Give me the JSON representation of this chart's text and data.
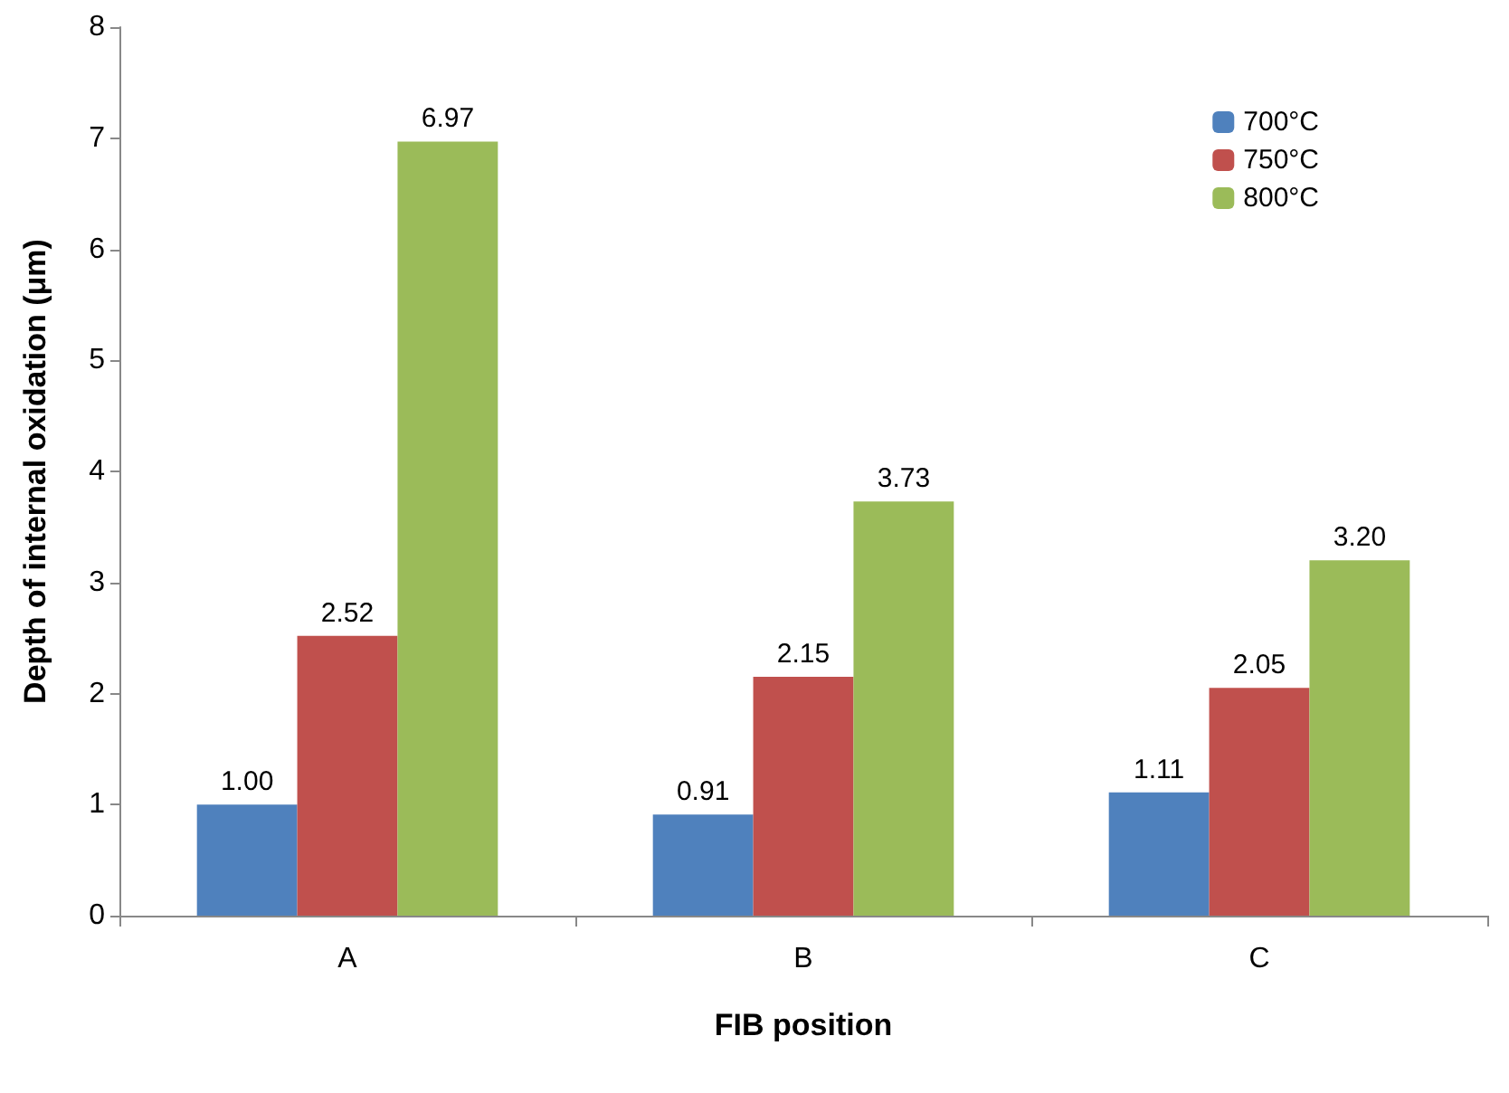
{
  "chart_data": {
    "type": "bar",
    "xlabel": "FIB position",
    "ylabel": "Depth of internal oxidation (μm)",
    "categories": [
      "A",
      "B",
      "C"
    ],
    "series": [
      {
        "name": "700°C",
        "color": "#4f81bd",
        "values": [
          1.0,
          0.91,
          1.11
        ],
        "value_labels": [
          "1.00",
          "0.91",
          "1.11"
        ]
      },
      {
        "name": "750°C",
        "color": "#c0504d",
        "values": [
          2.52,
          2.15,
          2.05
        ],
        "value_labels": [
          "2.52",
          "2.15",
          "2.05"
        ]
      },
      {
        "name": "800°C",
        "color": "#9bbb59",
        "values": [
          6.97,
          3.73,
          3.2
        ],
        "value_labels": [
          "6.97",
          "3.73",
          "3.20"
        ]
      }
    ],
    "ylim": [
      0,
      8
    ],
    "yticks": [
      0,
      1,
      2,
      3,
      4,
      5,
      6,
      7,
      8
    ],
    "grid": false,
    "legend": "top right"
  }
}
